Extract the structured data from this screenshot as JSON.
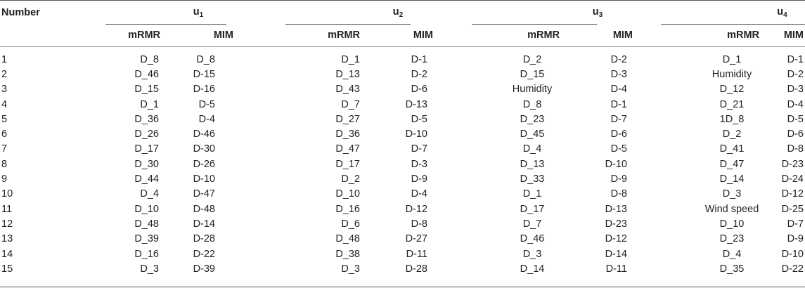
{
  "header": {
    "number_label": "Number",
    "groups": [
      {
        "base": "u",
        "sub": "1"
      },
      {
        "base": "u",
        "sub": "2"
      },
      {
        "base": "u",
        "sub": "3"
      },
      {
        "base": "u",
        "sub": "4"
      }
    ],
    "col_mrmr": "mRMR",
    "col_mim": "MIM"
  },
  "rows": [
    {
      "number": "1",
      "u1_mrmr": "D_8",
      "u1_mim": "D_8",
      "u2_mrmr": "D_1",
      "u2_mim": "D-1",
      "u3_mrmr": "D_2",
      "u3_mim": "D-2",
      "u4_mrmr": "D_1",
      "u4_mim": "D-1"
    },
    {
      "number": "2",
      "u1_mrmr": "D_46",
      "u1_mim": "D-15",
      "u2_mrmr": "D_13",
      "u2_mim": "D-2",
      "u3_mrmr": "D_15",
      "u3_mim": "D-3",
      "u4_mrmr": "Humidity",
      "u4_mim": "D-2"
    },
    {
      "number": "3",
      "u1_mrmr": "D_15",
      "u1_mim": "D-16",
      "u2_mrmr": "D_43",
      "u2_mim": "D-6",
      "u3_mrmr": "Humidity",
      "u3_mim": "D-4",
      "u4_mrmr": "D_12",
      "u4_mim": "D-3"
    },
    {
      "number": "4",
      "u1_mrmr": "D_1",
      "u1_mim": "D-5",
      "u2_mrmr": "D_7",
      "u2_mim": "D-13",
      "u3_mrmr": "D_8",
      "u3_mim": "D-1",
      "u4_mrmr": "D_21",
      "u4_mim": "D-4"
    },
    {
      "number": "5",
      "u1_mrmr": "D_36",
      "u1_mim": "D-4",
      "u2_mrmr": "D_27",
      "u2_mim": "D-5",
      "u3_mrmr": "D_23",
      "u3_mim": "D-7",
      "u4_mrmr": "1D_8",
      "u4_mim": "D-5"
    },
    {
      "number": "6",
      "u1_mrmr": "D_26",
      "u1_mim": "D-46",
      "u2_mrmr": "D_36",
      "u2_mim": "D-10",
      "u3_mrmr": "D_45",
      "u3_mim": "D-6",
      "u4_mrmr": "D_2",
      "u4_mim": "D-6"
    },
    {
      "number": "7",
      "u1_mrmr": "D_17",
      "u1_mim": "D-30",
      "u2_mrmr": "D_47",
      "u2_mim": "D-7",
      "u3_mrmr": "D_4",
      "u3_mim": "D-5",
      "u4_mrmr": "D_41",
      "u4_mim": "D-8"
    },
    {
      "number": "8",
      "u1_mrmr": "D_30",
      "u1_mim": "D-26",
      "u2_mrmr": "D_17",
      "u2_mim": "D-3",
      "u3_mrmr": "D_13",
      "u3_mim": "D-10",
      "u4_mrmr": "D_47",
      "u4_mim": "D-23"
    },
    {
      "number": "9",
      "u1_mrmr": "D_44",
      "u1_mim": "D-10",
      "u2_mrmr": "D_2",
      "u2_mim": "D-9",
      "u3_mrmr": "D_33",
      "u3_mim": "D-9",
      "u4_mrmr": "D_14",
      "u4_mim": "D-24"
    },
    {
      "number": "10",
      "u1_mrmr": "D_4",
      "u1_mim": "D-47",
      "u2_mrmr": "D_10",
      "u2_mim": "D-4",
      "u3_mrmr": "D_1",
      "u3_mim": "D-8",
      "u4_mrmr": "D_3",
      "u4_mim": "D-12"
    },
    {
      "number": "11",
      "u1_mrmr": "D_10",
      "u1_mim": "D-48",
      "u2_mrmr": "D_16",
      "u2_mim": "D-12",
      "u3_mrmr": "D_17",
      "u3_mim": "D-13",
      "u4_mrmr": "Wind speed",
      "u4_mim": "D-25"
    },
    {
      "number": "12",
      "u1_mrmr": "D_48",
      "u1_mim": "D-14",
      "u2_mrmr": "D_6",
      "u2_mim": "D-8",
      "u3_mrmr": "D_7",
      "u3_mim": "D-23",
      "u4_mrmr": "D_10",
      "u4_mim": "D-7"
    },
    {
      "number": "13",
      "u1_mrmr": "D_39",
      "u1_mim": "D-28",
      "u2_mrmr": "D_48",
      "u2_mim": "D-27",
      "u3_mrmr": "D_46",
      "u3_mim": "D-12",
      "u4_mrmr": "D_23",
      "u4_mim": "D-9"
    },
    {
      "number": "14",
      "u1_mrmr": "D_16",
      "u1_mim": "D-22",
      "u2_mrmr": "D_38",
      "u2_mim": "D-11",
      "u3_mrmr": "D_3",
      "u3_mim": "D-14",
      "u4_mrmr": "D_4",
      "u4_mim": "D-10"
    },
    {
      "number": "15",
      "u1_mrmr": "D_3",
      "u1_mim": "D-39",
      "u2_mrmr": "D_3",
      "u2_mim": "D-28",
      "u3_mrmr": "D_14",
      "u3_mim": "D-11",
      "u4_mrmr": "D_35",
      "u4_mim": "D-22"
    }
  ]
}
